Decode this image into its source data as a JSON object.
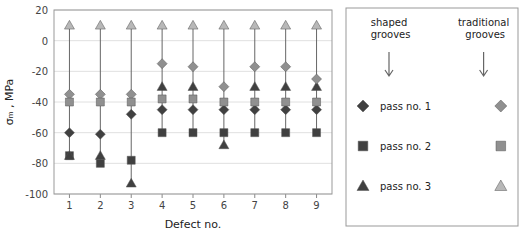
{
  "chart_data": {
    "type": "scatter",
    "x": [
      1,
      2,
      3,
      4,
      5,
      6,
      7,
      8,
      9
    ],
    "xlabel": "Defect no.",
    "ylabel": "σₘ , MPa",
    "xlim": [
      0.5,
      9.5
    ],
    "xticks": [
      1,
      2,
      3,
      4,
      5,
      6,
      7,
      8,
      9
    ],
    "ylim": [
      -100,
      20
    ],
    "yticks": [
      -100,
      -80,
      -60,
      -40,
      -20,
      0,
      20
    ],
    "grid": true,
    "annotations": [
      "shaped grooves",
      "traditional grooves"
    ],
    "series": [
      {
        "name": "pass no. 1",
        "color": "#404040",
        "marker": "diamond",
        "values": [
          -60,
          -61,
          -48,
          -45,
          -45,
          -45,
          -45,
          -45,
          -45
        ]
      },
      {
        "name": "pass no. 2",
        "color": "#404040",
        "marker": "square",
        "values": [
          -75,
          -80,
          -78,
          -60,
          -60,
          -60,
          -60,
          -60,
          -60
        ]
      },
      {
        "name": "pass no. 3",
        "color": "#404040",
        "marker": "triangle",
        "values": [
          -75,
          -75,
          -93,
          -30,
          -30,
          -68,
          -30,
          -30,
          -30
        ]
      },
      {
        "name": "pass no. 1",
        "color": "#909090",
        "marker": "diamond",
        "values": [
          -35,
          -35,
          -35,
          -15,
          -17,
          -30,
          -17,
          -17,
          -25
        ]
      },
      {
        "name": "pass no. 2",
        "color": "#909090",
        "marker": "square",
        "values": [
          -40,
          -40,
          -40,
          -38,
          -38,
          -40,
          -40,
          -40,
          -40
        ]
      },
      {
        "name": "pass no. 3",
        "color": "#b8b8b8",
        "marker": "triangle",
        "values": [
          10,
          10,
          10,
          10,
          10,
          10,
          10,
          10,
          10
        ]
      }
    ]
  }
}
